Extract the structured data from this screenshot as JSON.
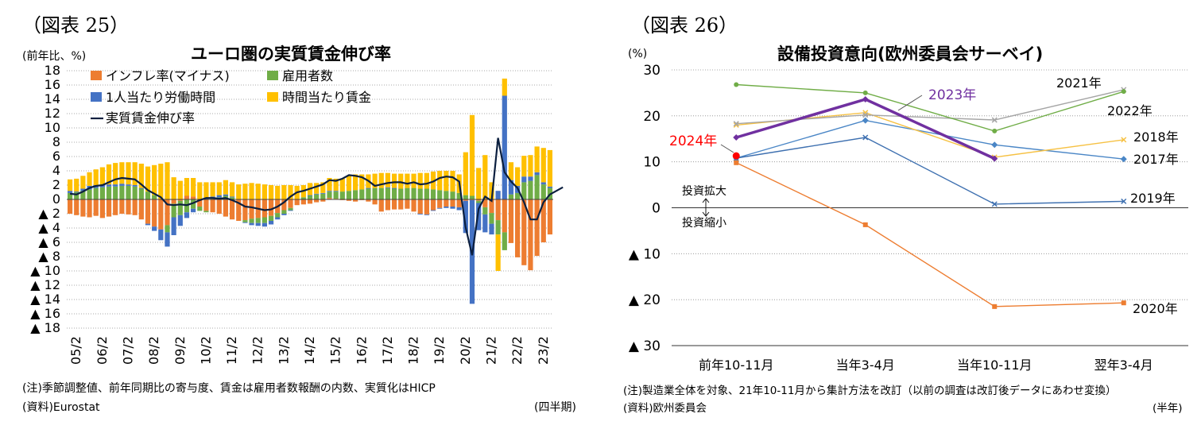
{
  "left": {
    "fig_label": "（図表 25）",
    "unit": "(前年比、%)",
    "note": "(注)季節調整値、前年同期比の寄与度、賃金は雇用者数報酬の内数、実質化はHICP",
    "source": "(資料)Eurostat",
    "period_unit": "(四半期)"
  },
  "right": {
    "fig_label": "（図表 26）",
    "unit": "(%)",
    "note": "(注)製造業全体を対象、21年10-11月から集計方法を改訂（以前の調査は改訂後データにあわせ変換）",
    "source": "(資料)欧州委員会",
    "period_unit": "(半年)",
    "annotation_up": "投資拡大",
    "annotation_down": "投資縮小"
  },
  "chart_data": [
    {
      "type": "bar",
      "stacked": true,
      "title": "ユーロ圏の実質賃金伸び率",
      "ylim": [
        -18,
        18
      ],
      "yticks": [
        "▲ 18",
        "▲ 16",
        "▲ 14",
        "▲ 12",
        "▲ 10",
        "▲ 8",
        "▲ 6",
        "▲ 4",
        "▲ 2",
        "0",
        "2",
        "4",
        "6",
        "8",
        "10",
        "12",
        "14",
        "16",
        "18"
      ],
      "ytick_values": [
        -18,
        -16,
        -14,
        -12,
        -10,
        -8,
        -6,
        -4,
        -2,
        0,
        2,
        4,
        6,
        8,
        10,
        12,
        14,
        16,
        18
      ],
      "grid": true,
      "legend_position": "top-left",
      "x_tick_labels": [
        "05/2",
        "06/2",
        "07/2",
        "08/2",
        "09/2",
        "10/2",
        "11/2",
        "12/2",
        "13/2",
        "14/2",
        "15/2",
        "16/2",
        "17/2",
        "18/2",
        "19/2",
        "20/2",
        "21/2",
        "22/2",
        "23/2"
      ],
      "quarters_start": "2005Q1",
      "series": [
        {
          "name": "インフレ率(マイナス)",
          "color": "#ED7D31",
          "values": [
            -2.0,
            -2.2,
            -2.4,
            -2.5,
            -2.3,
            -2.6,
            -2.4,
            -2.2,
            -2.0,
            -2.1,
            -2.2,
            -2.8,
            -3.4,
            -3.8,
            -4.2,
            -3.6,
            -0.6,
            -0.2,
            0.5,
            0.4,
            -1.0,
            -1.6,
            -1.8,
            -2.0,
            -2.4,
            -2.8,
            -3.0,
            -2.9,
            -2.7,
            -2.6,
            -2.5,
            -2.3,
            -1.9,
            -1.5,
            -1.2,
            -0.8,
            -0.7,
            -0.6,
            -0.4,
            -0.3,
            0.2,
            0.1,
            -0.1,
            -0.2,
            -0.3,
            -0.1,
            -0.3,
            -0.7,
            -1.7,
            -1.5,
            -1.4,
            -1.4,
            -1.3,
            -1.7,
            -2.0,
            -2.1,
            -1.5,
            -1.2,
            -1.0,
            -1.0,
            -1.1,
            -0.2,
            -0.1,
            -0.2,
            -1.1,
            -1.9,
            -2.9,
            -4.6,
            -6.1,
            -8.1,
            -9.2,
            -9.9,
            -7.9,
            -6.0,
            -4.9
          ]
        },
        {
          "name": "雇用者数",
          "color": "#70AD47",
          "values": [
            0.9,
            1.0,
            1.2,
            1.4,
            1.6,
            1.7,
            1.8,
            1.8,
            1.9,
            1.9,
            1.8,
            1.5,
            1.1,
            0.6,
            0.0,
            -1.0,
            -1.9,
            -2.0,
            -1.8,
            -1.3,
            -0.6,
            -0.2,
            0.1,
            0.3,
            0.5,
            0.3,
            0.0,
            -0.3,
            -0.6,
            -0.7,
            -0.8,
            -0.7,
            -0.6,
            -0.5,
            -0.3,
            0.0,
            0.3,
            0.5,
            0.7,
            0.8,
            0.9,
            1.0,
            1.1,
            1.2,
            1.3,
            1.4,
            1.5,
            1.6,
            1.6,
            1.6,
            1.5,
            1.5,
            1.6,
            1.6,
            1.5,
            1.5,
            1.4,
            1.3,
            1.2,
            1.1,
            0.9,
            0.6,
            0.5,
            -0.3,
            -1.0,
            -1.5,
            -2.0,
            -2.5,
            0.7,
            0.9,
            2.4,
            2.6,
            3.4,
            2.1,
            1.6,
            1.4,
            1.2
          ]
        },
        {
          "name": "1人当たり労働時間",
          "color": "#4472C4",
          "values": [
            0.3,
            0.1,
            0.3,
            0.5,
            0.4,
            0.3,
            0.3,
            0.3,
            0.3,
            0.2,
            0.2,
            0.1,
            -0.2,
            -0.6,
            -1.5,
            -2.0,
            -2.5,
            -1.5,
            -0.8,
            -0.5,
            0.0,
            0.2,
            0.3,
            0.3,
            0.2,
            0.1,
            0.0,
            -0.1,
            -0.3,
            -0.4,
            -0.5,
            -0.5,
            -0.3,
            -0.2,
            -0.1,
            0.0,
            0.0,
            0.1,
            0.1,
            0.1,
            0.1,
            0.1,
            0.0,
            0.0,
            0.0,
            0.0,
            0.1,
            0.0,
            0.0,
            0.1,
            0.1,
            0.0,
            0.0,
            0.0,
            -0.1,
            -0.1,
            -0.1,
            -0.1,
            -0.2,
            -0.3,
            -0.4,
            -4.5,
            -14.5,
            -3.8,
            -2.5,
            -1.5,
            1.2,
            14.5,
            2.0,
            1.0,
            0.8,
            0.6,
            0.4,
            0.3,
            0.2,
            0.2,
            0.2
          ]
        },
        {
          "name": "時間当たり賃金",
          "color": "#FFC000",
          "values": [
            1.6,
            1.8,
            1.8,
            1.9,
            2.2,
            2.5,
            2.8,
            3.0,
            3.0,
            3.1,
            3.2,
            3.4,
            3.5,
            4.2,
            5.0,
            5.2,
            3.1,
            2.6,
            2.5,
            2.6,
            2.4,
            2.2,
            2.0,
            1.8,
            2.0,
            2.0,
            2.1,
            2.2,
            2.3,
            2.2,
            2.1,
            2.0,
            1.9,
            2.0,
            2.0,
            1.9,
            1.7,
            1.7,
            1.5,
            1.5,
            1.8,
            1.7,
            1.8,
            2.1,
            2.2,
            2.1,
            1.9,
            2.0,
            2.1,
            2.0,
            2.0,
            2.1,
            2.0,
            2.0,
            2.2,
            2.2,
            2.5,
            2.7,
            2.8,
            2.9,
            2.6,
            6.0,
            11.3,
            4.4,
            6.2,
            2.4,
            -5.1,
            2.4,
            2.5,
            2.6,
            2.9,
            3.0,
            3.6,
            4.8,
            5.1,
            5.4,
            5.2
          ]
        },
        {
          "name": "実質賃金伸び率",
          "color": "#0B1F3F",
          "render": "line",
          "values": [
            0.8,
            0.7,
            1.1,
            1.6,
            1.9,
            2.0,
            2.4,
            2.8,
            3.0,
            2.9,
            2.8,
            2.1,
            1.3,
            0.8,
            0.3,
            -0.7,
            -0.8,
            -0.7,
            -0.8,
            -0.5,
            -0.1,
            0.2,
            0.2,
            0.1,
            0.2,
            -0.1,
            -0.5,
            -1.0,
            -1.1,
            -1.3,
            -1.5,
            -1.4,
            -1.0,
            -0.4,
            0.4,
            1.0,
            1.2,
            1.5,
            1.8,
            2.1,
            2.7,
            2.6,
            2.9,
            3.4,
            3.3,
            3.1,
            2.6,
            1.9,
            2.1,
            2.3,
            2.4,
            2.4,
            2.2,
            2.4,
            2.1,
            2.2,
            2.5,
            3.0,
            3.2,
            3.1,
            2.5,
            -3.9,
            -7.8,
            -1.3,
            0.4,
            -0.2,
            8.6,
            3.8,
            2.5,
            1.6,
            -0.4,
            -2.8,
            -2.8,
            -0.4,
            0.7,
            1.2,
            1.7
          ]
        }
      ]
    },
    {
      "type": "line",
      "title": "設備投資意向(欧州委員会サーベイ)",
      "categories": [
        "前年10-11月",
        "当年3-4月",
        "当年10-11月",
        "翌年3-4月"
      ],
      "ylim": [
        -30,
        30
      ],
      "yticks": [
        "▲ 30",
        "▲ 20",
        "▲ 10",
        "0",
        "10",
        "20",
        "30"
      ],
      "ytick_values": [
        -30,
        -20,
        -10,
        0,
        10,
        20,
        30
      ],
      "grid": true,
      "series": [
        {
          "name": "2017年",
          "color": "#4A86C6",
          "marker": "diamond",
          "values": [
            10.8,
            19.0,
            13.7,
            10.6
          ]
        },
        {
          "name": "2018年",
          "color": "#F6C143",
          "marker": "x",
          "values": [
            18.0,
            20.7,
            11.0,
            14.8
          ]
        },
        {
          "name": "2019年",
          "color": "#3E70B0",
          "marker": "x",
          "values": [
            10.8,
            15.3,
            0.8,
            1.4
          ]
        },
        {
          "name": "2020年",
          "color": "#ED7D31",
          "marker": "square",
          "values": [
            9.8,
            -3.7,
            -21.5,
            -20.7
          ]
        },
        {
          "name": "2021年",
          "color": "#A5A5A5",
          "marker": "x",
          "values": [
            18.3,
            20.2,
            19.1,
            25.7
          ]
        },
        {
          "name": "2022年",
          "color": "#70AD47",
          "marker": "circle",
          "values": [
            26.8,
            25.0,
            16.7,
            25.3
          ]
        },
        {
          "name": "2023年",
          "color": "#7030A0",
          "marker": "diamond",
          "values": [
            15.3,
            23.6,
            10.7,
            null
          ]
        },
        {
          "name": "2024年",
          "color": "#FF0000",
          "marker": "circle",
          "values": [
            11.3,
            null,
            null,
            null
          ]
        }
      ]
    }
  ]
}
